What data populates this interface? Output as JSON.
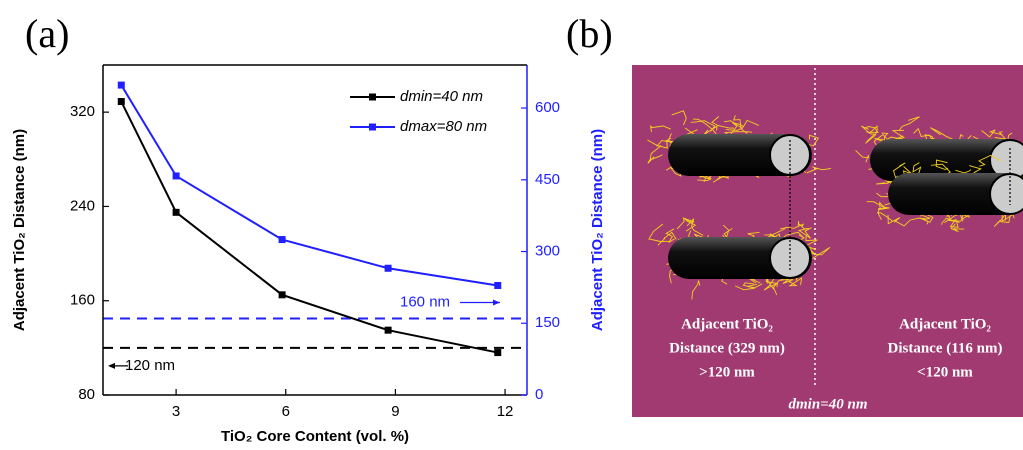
{
  "chart_data": {
    "type": "line",
    "xlabel": "TiO₂ Core Content (vol. %)",
    "ylabel": "Adjacent TiO₂ Distance (nm)",
    "y2label": "Adjacent TiO₂ Distance (nm)",
    "x": [
      1.5,
      3,
      5.9,
      8.8,
      11.8
    ],
    "series": [
      {
        "name": "dmin=40 nm",
        "color": "#000000",
        "values": [
          329,
          235,
          165,
          135,
          116
        ]
      },
      {
        "name": "dmax=80 nm",
        "color": "#1f1fff",
        "axis": "y2",
        "values": [
          648,
          458,
          325,
          265,
          229
        ]
      }
    ],
    "xlim": [
      1,
      12.6
    ],
    "xticks": [
      3,
      6,
      9,
      12
    ],
    "ylim": [
      80,
      360
    ],
    "yticks": [
      80,
      160,
      240,
      320
    ],
    "y2lim": [
      0,
      690
    ],
    "y2ticks": [
      0,
      150,
      300,
      450,
      600
    ],
    "reference_lines": [
      {
        "value": 120,
        "label": "120 nm",
        "color": "#000000"
      },
      {
        "value": 160,
        "axis": "y2",
        "label": "160 nm",
        "color": "#1f1fff"
      }
    ],
    "legend": "upper right"
  },
  "panel_labels": [
    "(a)",
    "(b)"
  ],
  "schematic": {
    "left_caption": [
      "Adjacent TiO₂",
      "Distance (329 nm)",
      ">120 nm"
    ],
    "right_caption": [
      "Adjacent TiO₂",
      "Distance (116 nm)",
      "<120 nm"
    ],
    "footer": "dmin=40 nm"
  }
}
